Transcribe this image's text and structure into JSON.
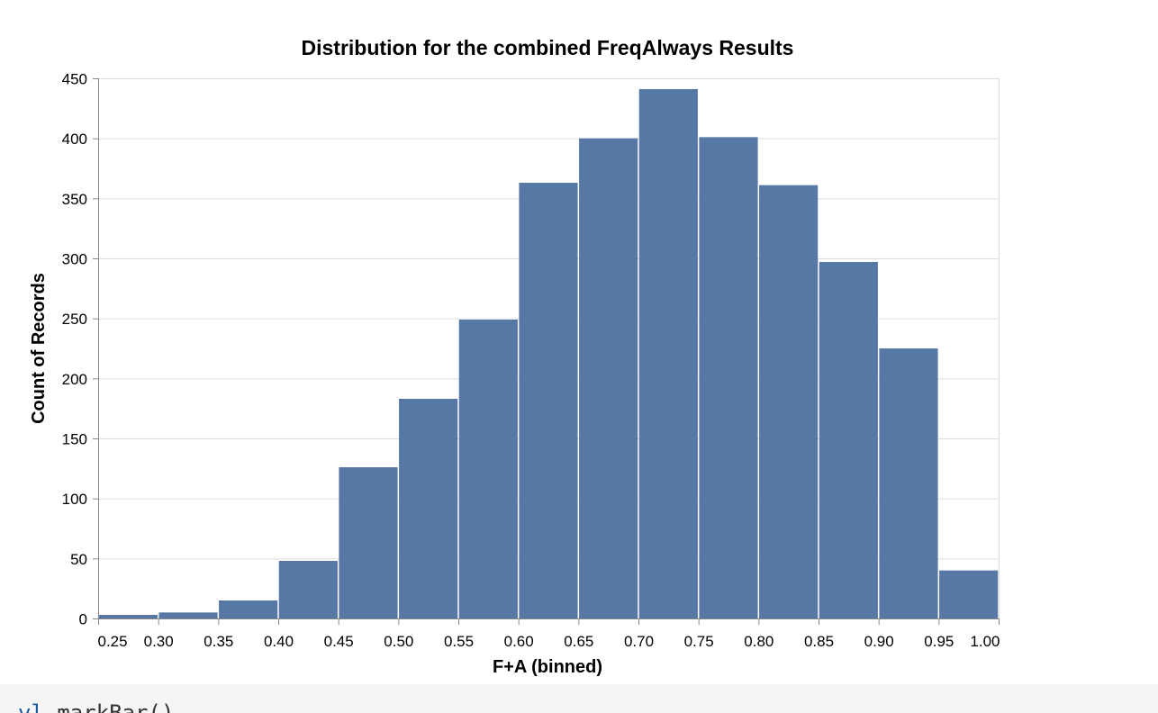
{
  "colors": {
    "bar": "#5778a4",
    "grid": "#dddddd",
    "axis": "#888888",
    "text": "#000000",
    "code_bg": "#f5f5f5"
  },
  "chart_data": {
    "type": "bar",
    "title": "Distribution for the combined FreqAlways Results",
    "xlabel": "F+A (binned)",
    "ylabel": "Count of Records",
    "xlim": [
      0.25,
      1.0
    ],
    "ylim": [
      0,
      450
    ],
    "x_ticks": [
      "0.25",
      "0.30",
      "0.35",
      "0.40",
      "0.45",
      "0.50",
      "0.55",
      "0.60",
      "0.65",
      "0.70",
      "0.75",
      "0.80",
      "0.85",
      "0.90",
      "0.95",
      "1.00"
    ],
    "x_tick_values": [
      0.25,
      0.3,
      0.35,
      0.4,
      0.45,
      0.5,
      0.55,
      0.6,
      0.65,
      0.7,
      0.75,
      0.8,
      0.85,
      0.9,
      0.95,
      1.0
    ],
    "y_ticks": [
      0,
      50,
      100,
      150,
      200,
      250,
      300,
      350,
      400,
      450
    ],
    "grid": true,
    "bins": [
      {
        "x0": 0.25,
        "x1": 0.3,
        "value": 3
      },
      {
        "x0": 0.3,
        "x1": 0.35,
        "value": 5
      },
      {
        "x0": 0.35,
        "x1": 0.4,
        "value": 15
      },
      {
        "x0": 0.4,
        "x1": 0.45,
        "value": 48
      },
      {
        "x0": 0.45,
        "x1": 0.5,
        "value": 126
      },
      {
        "x0": 0.5,
        "x1": 0.55,
        "value": 183
      },
      {
        "x0": 0.55,
        "x1": 0.6,
        "value": 249
      },
      {
        "x0": 0.6,
        "x1": 0.65,
        "value": 363
      },
      {
        "x0": 0.65,
        "x1": 0.7,
        "value": 400
      },
      {
        "x0": 0.7,
        "x1": 0.75,
        "value": 441
      },
      {
        "x0": 0.75,
        "x1": 0.8,
        "value": 401
      },
      {
        "x0": 0.8,
        "x1": 0.85,
        "value": 361
      },
      {
        "x0": 0.85,
        "x1": 0.9,
        "value": 297
      },
      {
        "x0": 0.9,
        "x1": 0.95,
        "value": 225
      },
      {
        "x0": 0.95,
        "x1": 1.0,
        "value": 40
      }
    ]
  },
  "code": {
    "prefix": "vl",
    "text": ".markBar()"
  }
}
